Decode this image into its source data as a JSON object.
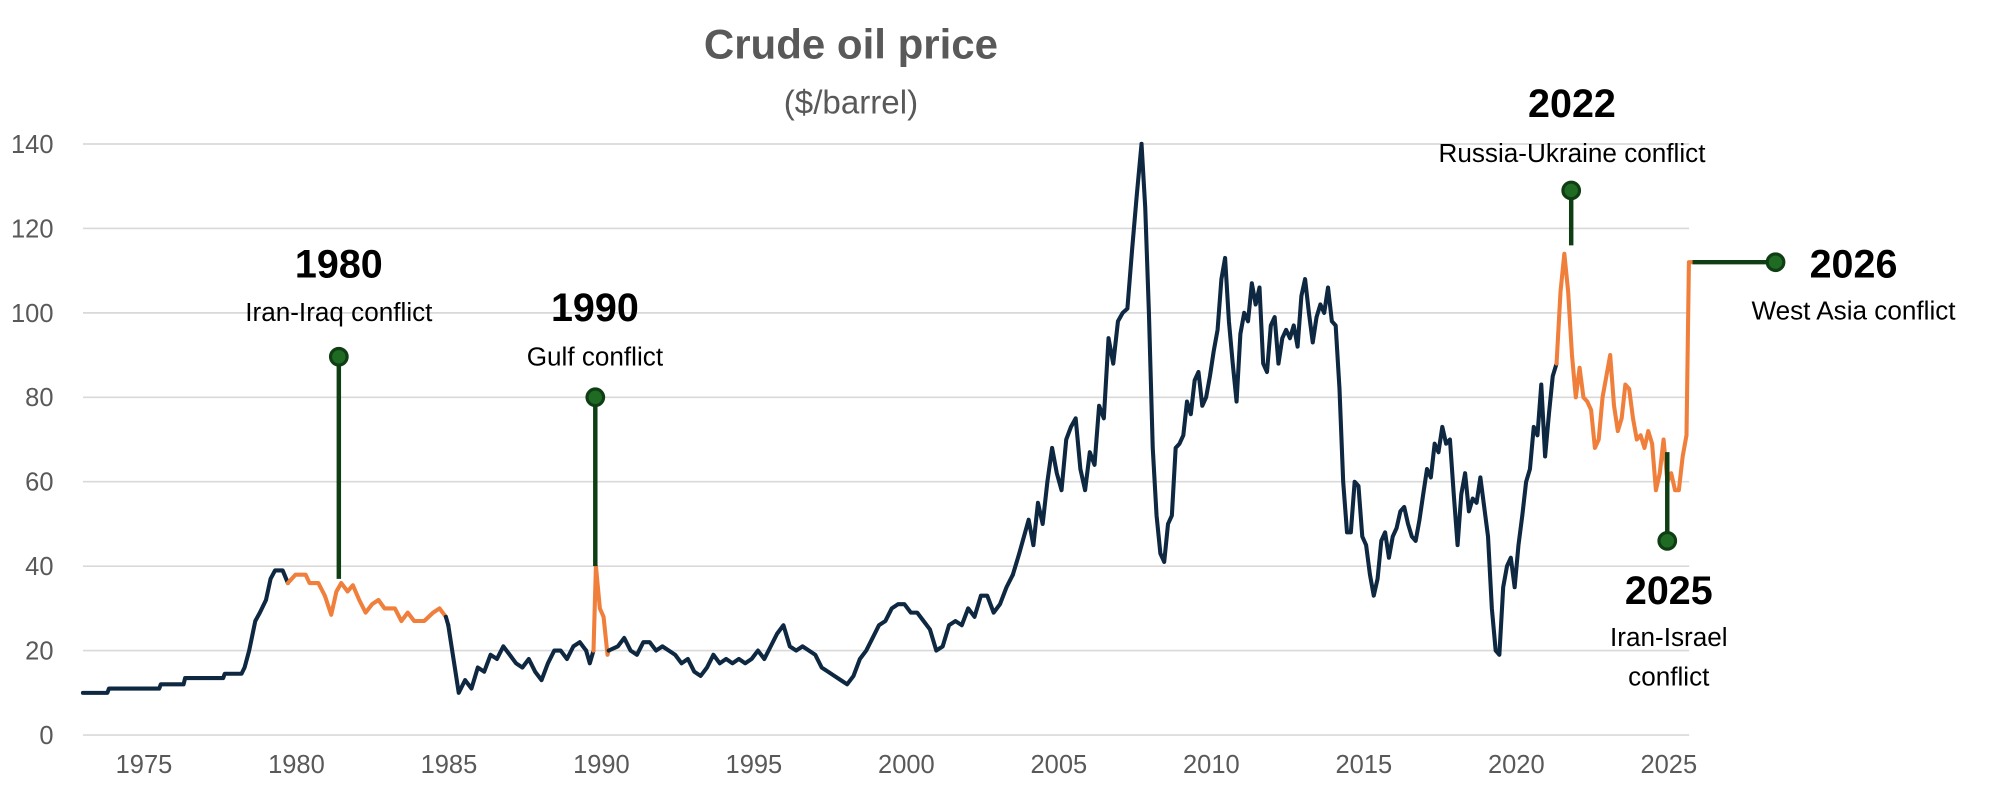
{
  "chart_data": {
    "type": "line",
    "title": "Crude oil price",
    "subtitle": "($/barrel)",
    "xlabel": "",
    "ylabel": "",
    "xlim": [
      1973,
      2025.9
    ],
    "ylim": [
      0,
      140
    ],
    "grid": true,
    "legend": "none",
    "colors": {
      "base": "#0e2841",
      "conflict": "#f07f3c",
      "marker_line": "#0f3d14",
      "marker_fill": "#1f6b24",
      "grid": "#d9d9d9",
      "text": "#595959"
    },
    "y_ticks": [
      "0",
      "20",
      "40",
      "60",
      "80",
      "100",
      "120",
      "140"
    ],
    "x_ticks": [
      "1975",
      "1980",
      "1985",
      "1990",
      "1995",
      "2000",
      "2005",
      "2010",
      "2015",
      "2020",
      "2025"
    ],
    "segments": [
      {
        "color": "base",
        "points": [
          [
            1973,
            10
          ],
          [
            1973.8,
            10
          ],
          [
            1973.85,
            11
          ],
          [
            1975.5,
            11
          ],
          [
            1975.55,
            12
          ],
          [
            1976.3,
            12
          ],
          [
            1976.35,
            13.5
          ],
          [
            1977.6,
            13.5
          ],
          [
            1977.65,
            14.5
          ],
          [
            1978.2,
            14.5
          ],
          [
            1978.3,
            16
          ],
          [
            1978.45,
            20
          ],
          [
            1978.65,
            27
          ],
          [
            1978.8,
            29
          ],
          [
            1979.0,
            32
          ],
          [
            1979.15,
            37
          ],
          [
            1979.3,
            39
          ],
          [
            1979.55,
            39
          ],
          [
            1979.72,
            36
          ]
        ]
      },
      {
        "color": "conflict",
        "points": [
          [
            1979.97,
            38
          ],
          [
            1980.3,
            38
          ],
          [
            1980.43,
            36
          ],
          [
            1980.72,
            36
          ],
          [
            1980.93,
            33
          ],
          [
            1981.14,
            28.5
          ],
          [
            1981.31,
            34
          ],
          [
            1981.47,
            36
          ],
          [
            1981.68,
            34
          ],
          [
            1981.85,
            35.5
          ],
          [
            1982.06,
            32
          ],
          [
            1982.27,
            29
          ],
          [
            1982.48,
            31
          ],
          [
            1982.69,
            32
          ],
          [
            1982.89,
            30
          ],
          [
            1983.23,
            30
          ],
          [
            1983.44,
            27
          ],
          [
            1983.65,
            29
          ],
          [
            1983.86,
            27
          ],
          [
            1984.19,
            27
          ],
          [
            1984.48,
            29
          ],
          [
            1984.69,
            30
          ],
          [
            1984.9,
            28
          ]
        ]
      },
      {
        "color": "base",
        "points": [
          [
            1984.98,
            26
          ]
        ]
      },
      {
        "color": "base",
        "start": 1985.32,
        "end": 1989.5,
        "values": [
          10,
          13,
          11,
          16,
          15,
          19,
          18,
          21,
          19,
          17,
          16,
          18,
          15,
          13,
          17,
          20,
          20,
          18,
          21,
          22,
          20
        ]
      },
      {
        "color": "base",
        "points": [
          [
            1989.62,
            17
          ],
          [
            1989.74,
            20
          ]
        ]
      },
      {
        "color": "conflict",
        "points": [
          [
            1989.82,
            40
          ],
          [
            1989.95,
            30
          ],
          [
            1990.07,
            28
          ],
          [
            1990.2,
            19
          ],
          [
            1990.24,
            20
          ]
        ]
      },
      {
        "color": "base",
        "start": 1990.54,
        "end": 2003.49,
        "values": [
          21,
          23,
          20,
          19,
          22,
          22,
          20,
          21,
          20,
          19,
          17,
          18,
          15,
          14,
          16,
          19,
          17,
          18,
          17,
          18,
          17,
          18,
          20,
          18,
          21,
          24,
          26,
          21,
          20,
          21,
          20,
          19,
          16,
          15,
          14,
          13,
          12,
          14,
          18,
          20,
          23,
          26,
          27,
          30,
          31,
          31,
          29,
          29,
          27,
          25,
          20,
          21,
          26,
          27,
          26,
          30,
          28,
          33,
          33,
          29,
          31,
          35,
          38
        ]
      },
      {
        "color": "base",
        "start": 2003.7,
        "end": 2007.71,
        "values": [
          43,
          47,
          51,
          45,
          55,
          50,
          60,
          68,
          62,
          58,
          70,
          73,
          75,
          63,
          58,
          67,
          64,
          78,
          75,
          94,
          88,
          98,
          100,
          101,
          115,
          128,
          140
        ]
      },
      {
        "color": "base",
        "start": 2007.83,
        "end": 2021.32,
        "values": [
          125,
          100,
          68,
          52,
          43,
          41,
          50,
          52,
          68,
          69,
          71,
          79,
          76,
          84,
          86,
          78,
          80,
          85,
          91,
          96,
          108,
          113,
          98,
          88,
          79,
          95,
          100,
          98,
          107,
          102,
          106,
          88,
          86,
          97,
          99,
          88,
          94,
          96,
          94,
          97,
          92,
          104,
          108,
          100,
          93,
          99,
          102,
          100,
          106,
          98,
          97,
          82,
          60,
          48,
          48,
          60,
          59,
          47,
          45,
          38,
          33,
          37,
          46,
          48,
          42,
          47,
          49,
          53,
          54,
          50,
          47,
          46,
          51,
          57,
          63,
          61,
          69,
          67,
          73,
          69,
          70,
          57,
          45,
          57,
          62,
          53,
          56,
          55,
          61,
          54,
          47,
          30,
          20,
          19,
          35,
          40,
          42,
          35,
          45,
          52,
          60,
          63,
          73,
          71,
          83,
          66,
          76,
          85,
          88
        ]
      },
      {
        "color": "conflict",
        "start": 2021.45,
        "end": 2025.58,
        "values": [
          105,
          114,
          105,
          90,
          80,
          87,
          80,
          79,
          77,
          68,
          70,
          80,
          85,
          90,
          78,
          72,
          75,
          83,
          82,
          75,
          70,
          71,
          68,
          72,
          69,
          58,
          62,
          70,
          60,
          62,
          58,
          58,
          66,
          71
        ]
      },
      {
        "color": "conflict",
        "points": [
          [
            2025.66,
            112
          ],
          [
            2025.78,
            112
          ]
        ]
      }
    ],
    "annotations": [
      {
        "year_label": "1980",
        "text": [
          "Iran-Iraq conflict"
        ],
        "x": 1981.39,
        "dot_value": 89.6,
        "line_end_value": 37
      },
      {
        "year_label": "1990",
        "text": [
          "Gulf conflict"
        ],
        "x": 1989.8,
        "dot_value": 80,
        "line_end_value": 40
      },
      {
        "year_label": "2022",
        "text": [
          "Russia-Ukraine conflict"
        ],
        "x": 2021.8,
        "dot_value": 129,
        "line_end_value": 116
      },
      {
        "year_label": "2025",
        "text": [
          "Iran-Israel",
          "conflict"
        ],
        "x": 2024.95,
        "dot_value": 46,
        "line_end_value": 67
      },
      {
        "year_label": "2026",
        "text": [
          "West Asia conflict"
        ],
        "x": 2028.5,
        "dot_value": 112,
        "line_start_x": 2025.78,
        "horizontal": true
      }
    ]
  }
}
